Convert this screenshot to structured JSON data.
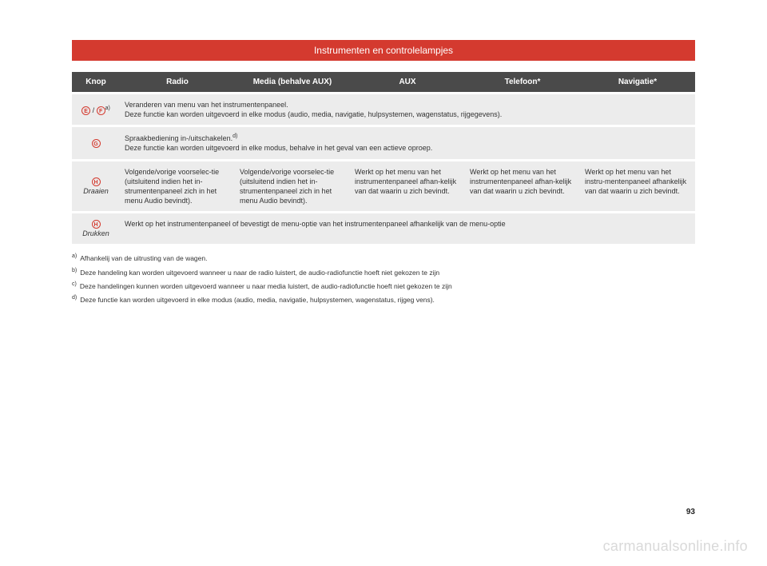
{
  "title": "Instrumenten en controlelampjes",
  "headers": {
    "knop": "Knop",
    "radio": "Radio",
    "media": "Media (behalve AUX)",
    "aux": "AUX",
    "telefoon": "Telefoon*",
    "navigatie": "Navigatie*"
  },
  "rows": {
    "ef": {
      "letter1": "E",
      "sep": " / ",
      "letter2": "F",
      "sup": "a)",
      "line1": "Veranderen van menu van het instrumentenpaneel.",
      "line2": "Deze functie kan worden uitgevoerd in elke modus (audio, media, navigatie, hulpsystemen, wagenstatus, rijgegevens)."
    },
    "g": {
      "letter": "G",
      "line1a": "Spraakbediening in-/uitschakelen.",
      "sup": "d)",
      "line2": "Deze functie kan worden uitgevoerd in elke modus, behalve in het geval van een actieve oproep."
    },
    "hdraai": {
      "letter": "H",
      "label": "Draaien",
      "radio": "Volgende/vorige voorselec-tie (uitsluitend indien het in-strumentenpaneel zich in het menu Audio bevindt).",
      "media": "Volgende/vorige voorselec-tie (uitsluitend indien het in-strumentenpaneel zich in het menu Audio bevindt).",
      "aux": "Werkt op het menu van het instrumentenpaneel afhan-kelijk van dat waarin u zich bevindt.",
      "telefoon": "Werkt op het menu van het instrumentenpaneel afhan-kelijk van dat waarin u zich bevindt.",
      "navigatie": "Werkt op het menu van het instru-mentenpaneel afhankelijk van dat waarin u zich bevindt."
    },
    "hdruk": {
      "letter": "H",
      "label": "Drukken",
      "text": "Werkt op het instrumentenpaneel of bevestigt de menu-optie van het instrumentenpaneel afhankelijk van de menu-optie"
    }
  },
  "footnotes": {
    "a": "Afhankelij   van de uitrusting van de wagen.",
    "b": "Deze handeling kan worden uitgevoerd wanneer u naar de radio luistert, de audio-radiofunctie hoeft niet gekozen te zijn",
    "c": "Deze handelingen kunnen worden uitgevoerd wanneer u naar media luistert, de audio-radiofunctie hoeft niet gekozen te zijn",
    "d": "Deze functie kan worden uitgevoerd in elke modus (audio, media, navigatie, hulpsystemen, wagenstatus, rijgeg   vens)."
  },
  "pagenum": "93",
  "watermark": "carmanualsonline.info"
}
